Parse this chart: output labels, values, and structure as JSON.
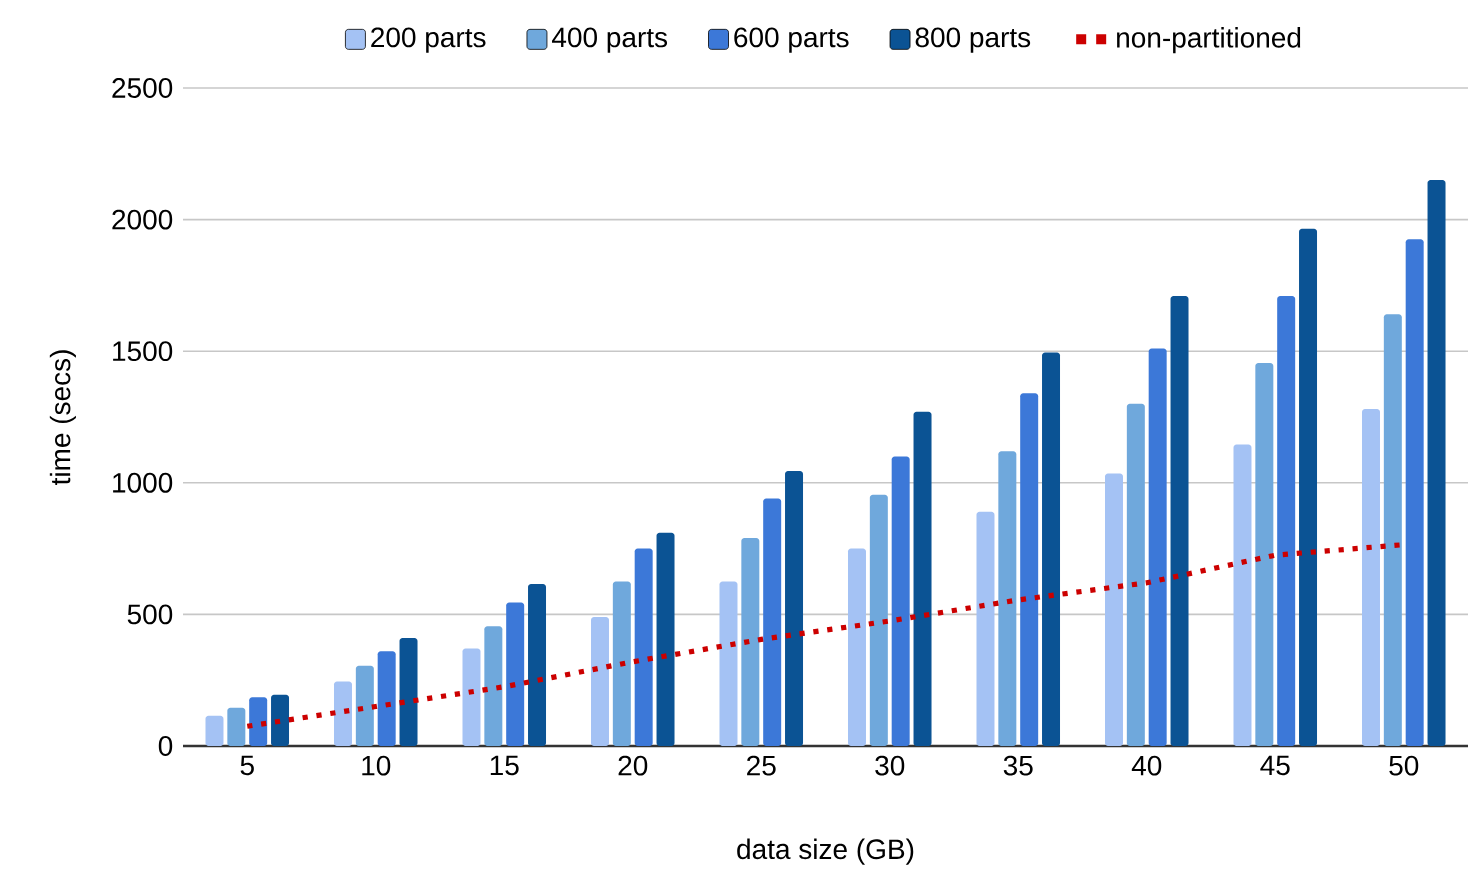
{
  "chart_data": {
    "type": "bar",
    "xlabel": "data size (GB)",
    "ylabel": "time (secs)",
    "categories": [
      "5",
      "10",
      "15",
      "20",
      "25",
      "30",
      "35",
      "40",
      "45",
      "50"
    ],
    "series": [
      {
        "name": "200 parts",
        "color": "#a4c2f4",
        "values": [
          115,
          245,
          370,
          490,
          625,
          750,
          890,
          1035,
          1145,
          1280
        ]
      },
      {
        "name": "400 parts",
        "color": "#6fa8dc",
        "values": [
          145,
          305,
          455,
          625,
          790,
          955,
          1120,
          1300,
          1455,
          1640
        ]
      },
      {
        "name": "600 parts",
        "color": "#3c78d8",
        "values": [
          185,
          360,
          545,
          750,
          940,
          1100,
          1340,
          1510,
          1710,
          1925
        ]
      },
      {
        "name": "800 parts",
        "color": "#0b5394",
        "values": [
          195,
          410,
          615,
          810,
          1045,
          1270,
          1495,
          1710,
          1965,
          2150
        ]
      },
      {
        "name": "non-partitioned",
        "type": "line",
        "line_style": "dotted",
        "color": "#cc0000",
        "values": [
          75,
          150,
          225,
          320,
          405,
          475,
          555,
          620,
          725,
          765
        ]
      }
    ],
    "ylim": [
      0,
      2500
    ],
    "yticks": [
      0,
      500,
      1000,
      1500,
      2000,
      2500
    ],
    "grid": "y",
    "legend": "top"
  }
}
